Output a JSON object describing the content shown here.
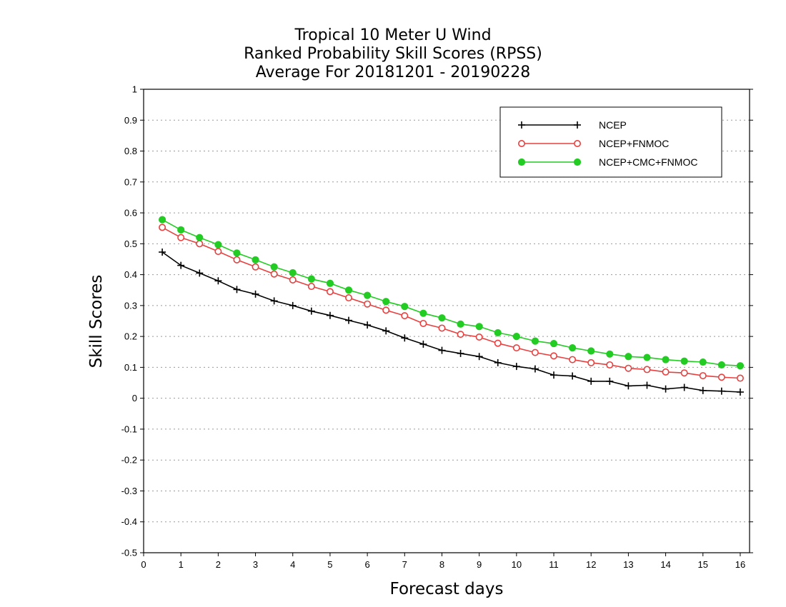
{
  "title_lines": [
    "Tropical 10 Meter U Wind",
    "Ranked Probability Skill Scores (RPSS)",
    "Average For 20181201 - 20190228"
  ],
  "chart_data": {
    "type": "line",
    "title": "Tropical 10 Meter U Wind Ranked Probability Skill Scores (RPSS) Average For 20181201 - 20190228",
    "xlabel": "Forecast days",
    "ylabel": "Skill Scores",
    "xlim": [
      0,
      16.25
    ],
    "ylim": [
      -0.5,
      1
    ],
    "xticks": [
      0,
      1,
      2,
      3,
      4,
      5,
      6,
      7,
      8,
      9,
      10,
      11,
      12,
      13,
      14,
      15,
      16
    ],
    "yticks": [
      -0.5,
      -0.4,
      -0.3,
      -0.2,
      -0.1,
      0,
      0.1,
      0.2,
      0.3,
      0.4,
      0.5,
      0.6,
      0.7,
      0.8,
      0.9,
      1
    ],
    "ytick_labels": [
      "-0.5",
      "-0.4",
      "-0.3",
      "-0.2",
      "-0.1",
      "0",
      "0.1",
      "0.2",
      "0.3",
      "0.4",
      "0.5",
      "0.6",
      "0.7",
      "0.8",
      "0.9",
      "1"
    ],
    "grid": "horizontal dotted",
    "legend_position": "top-right",
    "x": [
      0.5,
      1,
      1.5,
      2,
      2.5,
      3,
      3.5,
      4,
      4.5,
      5,
      5.5,
      6,
      6.5,
      7,
      7.5,
      8,
      8.5,
      9,
      9.5,
      10,
      10.5,
      11,
      11.5,
      12,
      12.5,
      13,
      13.5,
      14,
      14.5,
      15,
      15.5,
      16
    ],
    "series": [
      {
        "name": "NCEP",
        "color": "#000000",
        "marker": "plus",
        "values": [
          0.473,
          0.43,
          0.405,
          0.38,
          0.352,
          0.337,
          0.315,
          0.3,
          0.282,
          0.268,
          0.252,
          0.237,
          0.218,
          0.195,
          0.175,
          0.155,
          0.145,
          0.135,
          0.115,
          0.103,
          0.095,
          0.075,
          0.072,
          0.055,
          0.055,
          0.04,
          0.042,
          0.03,
          0.035,
          0.025,
          0.023,
          0.02
        ]
      },
      {
        "name": "NCEP+FNMOC",
        "color": "#e8403f",
        "marker": "open-circle",
        "values": [
          0.553,
          0.52,
          0.5,
          0.475,
          0.448,
          0.425,
          0.402,
          0.383,
          0.362,
          0.345,
          0.325,
          0.305,
          0.285,
          0.267,
          0.242,
          0.227,
          0.207,
          0.198,
          0.178,
          0.163,
          0.148,
          0.137,
          0.125,
          0.115,
          0.108,
          0.097,
          0.093,
          0.085,
          0.082,
          0.073,
          0.068,
          0.065
        ]
      },
      {
        "name": "NCEP+CMC+FNMOC",
        "color": "#22cc22",
        "marker": "filled-circle",
        "values": [
          0.578,
          0.545,
          0.52,
          0.497,
          0.47,
          0.448,
          0.425,
          0.406,
          0.386,
          0.372,
          0.35,
          0.333,
          0.313,
          0.297,
          0.275,
          0.26,
          0.24,
          0.232,
          0.212,
          0.2,
          0.185,
          0.177,
          0.163,
          0.153,
          0.143,
          0.135,
          0.132,
          0.125,
          0.12,
          0.117,
          0.108,
          0.105
        ]
      }
    ]
  }
}
